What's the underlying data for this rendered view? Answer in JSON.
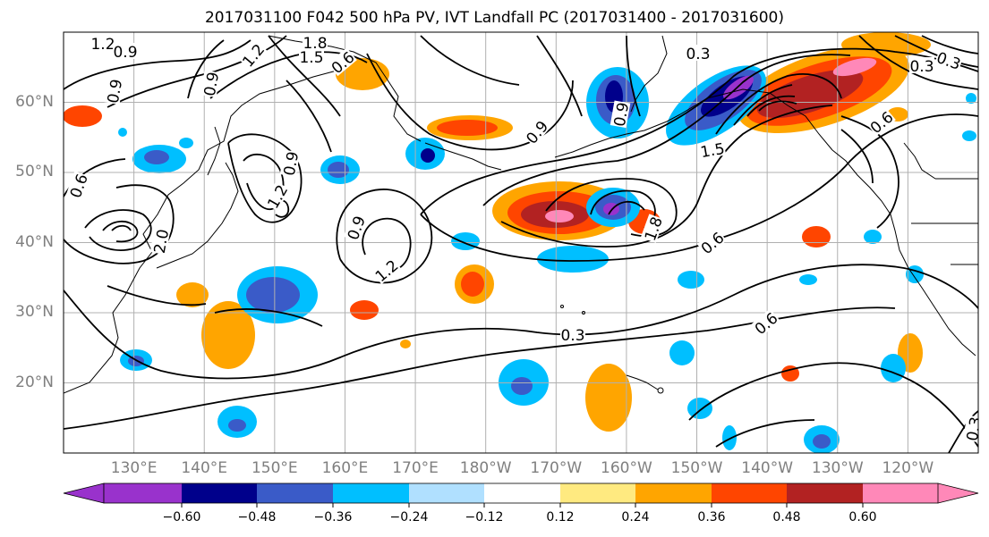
{
  "title": "2017031100 F042 500 hPa PV, IVT Landfall PC (2017031400 - 2017031600)",
  "lat_labels": [
    "60°N",
    "50°N",
    "40°N",
    "30°N",
    "20°N"
  ],
  "lon_labels": [
    "130°E",
    "140°E",
    "150°E",
    "160°E",
    "170°E",
    "180°W",
    "170°W",
    "160°W",
    "150°W",
    "140°W",
    "130°W",
    "120°W"
  ],
  "contour_labels": [
    "1.2",
    "0.9",
    "0.9",
    "1.2",
    "1.8",
    "1.5",
    "0.6",
    "0.9",
    "0.6",
    "0.9",
    "1.2",
    "0.9",
    "1.2",
    "2.0",
    "0.9",
    "0.3",
    "0.9",
    "1.8",
    "0.6",
    "1.5",
    "0.6",
    "0.3",
    "0.3",
    "0.3",
    "0.6",
    "0.3"
  ],
  "colorbar": {
    "colors": [
      "#9932CC",
      "#00008B",
      "#3A5BC8",
      "#00BFFF",
      "#B0E0FF",
      "#FFFFFF",
      "#FFEA80",
      "#FFA500",
      "#FF4500",
      "#B22222",
      "#FF88B8"
    ],
    "tick_labels": [
      "−0.60",
      "−0.48",
      "−0.36",
      "−0.24",
      "−0.12",
      "0.12",
      "0.24",
      "0.36",
      "0.48",
      "0.60"
    ]
  },
  "chart_data": {
    "type": "map",
    "projection": "cylindrical",
    "lon_range": [
      120,
      250
    ],
    "lat_range": [
      10,
      70
    ],
    "grid": true,
    "fill_variable": "IVT Landfall PC",
    "contour_variable": "500 hPa PV",
    "colorbar_levels": [
      -0.72,
      -0.6,
      -0.48,
      -0.36,
      -0.24,
      -0.12,
      0.12,
      0.24,
      0.36,
      0.48,
      0.6,
      0.72
    ],
    "colorbar_extend": "both"
  }
}
